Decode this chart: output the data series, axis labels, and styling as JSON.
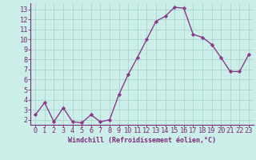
{
  "x": [
    0,
    1,
    2,
    3,
    4,
    5,
    6,
    7,
    8,
    9,
    10,
    11,
    12,
    13,
    14,
    15,
    16,
    17,
    18,
    19,
    20,
    21,
    22,
    23
  ],
  "y": [
    2.5,
    3.7,
    1.8,
    3.2,
    1.8,
    1.7,
    2.5,
    1.8,
    2.0,
    4.5,
    6.5,
    8.2,
    10.0,
    11.8,
    12.3,
    13.2,
    13.1,
    10.5,
    10.2,
    9.5,
    8.2,
    6.8,
    6.8,
    8.5
  ],
  "line_color": "#8b3a8b",
  "marker": "D",
  "marker_size": 2.2,
  "bg_color": "#cceee8",
  "grid_color": "#aad4ce",
  "xlabel": "Windchill (Refroidissement éolien,°C)",
  "xlabel_fontsize": 6.0,
  "tick_label_fontsize": 6.2,
  "ylim": [
    1.5,
    13.6
  ],
  "xlim": [
    -0.5,
    23.5
  ],
  "yticks": [
    2,
    3,
    4,
    5,
    6,
    7,
    8,
    9,
    10,
    11,
    12,
    13
  ],
  "xticks": [
    0,
    1,
    2,
    3,
    4,
    5,
    6,
    7,
    8,
    9,
    10,
    11,
    12,
    13,
    14,
    15,
    16,
    17,
    18,
    19,
    20,
    21,
    22,
    23
  ],
  "line_width": 1.0,
  "spine_color": "#7a2a7a",
  "axis_line_color": "#7a2a7a"
}
